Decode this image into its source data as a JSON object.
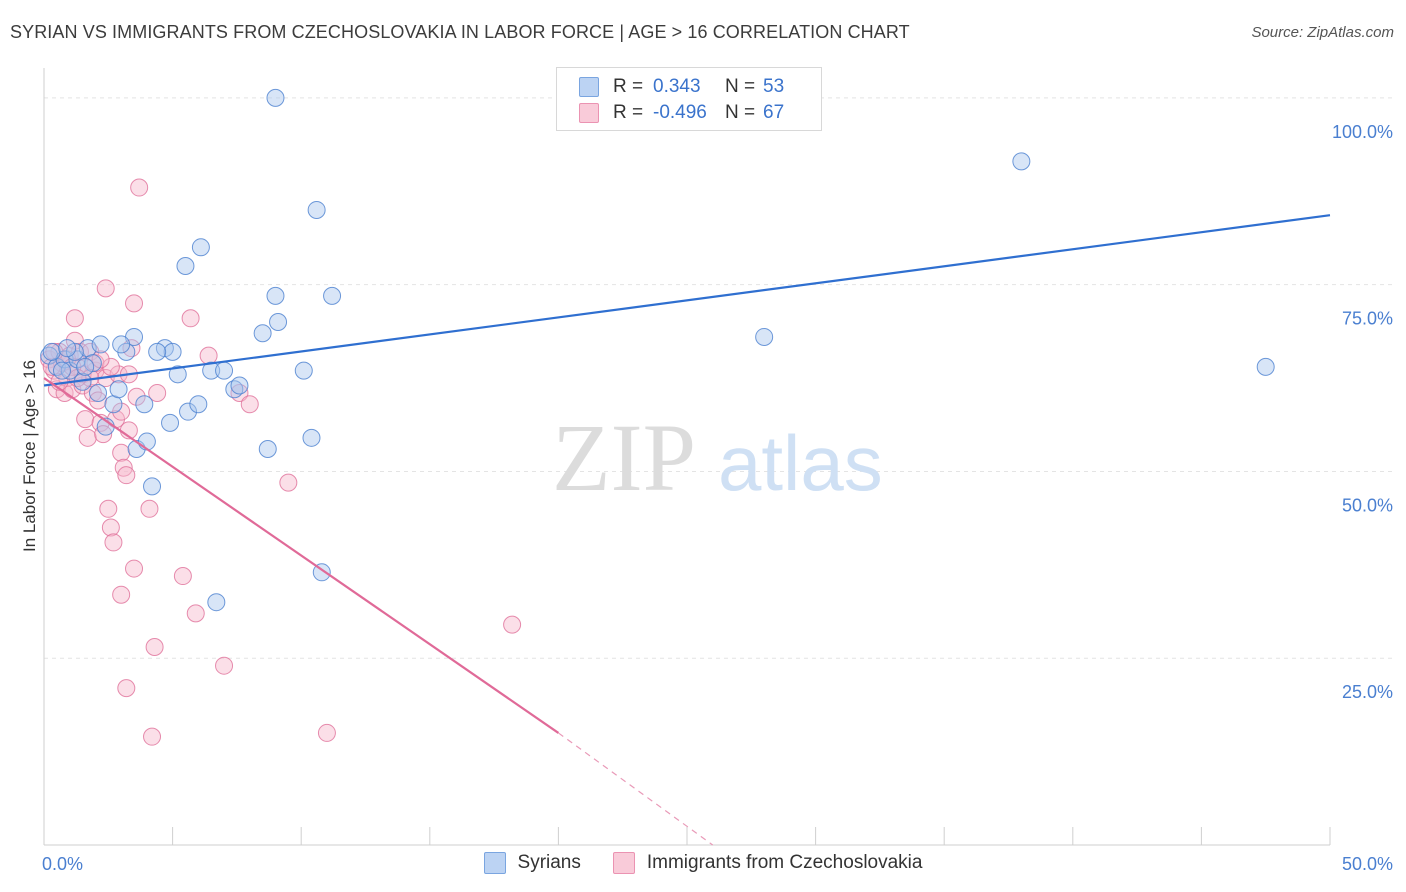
{
  "title": "SYRIAN VS IMMIGRANTS FROM CZECHOSLOVAKIA IN LABOR FORCE | AGE > 16 CORRELATION CHART",
  "source": "Source: ZipAtlas.com",
  "watermark": {
    "zip": "ZIP",
    "atlas": "atlas"
  },
  "colors": {
    "blue": "#4a7fd0",
    "blue_fill": "#a9c6ee",
    "blue_line": "#2f6fd0",
    "pink": "#e0709a",
    "pink_fill": "#f6b9cd",
    "pink_line": "#e06a98"
  },
  "legend": {
    "rows": [
      {
        "r_key": "R =",
        "r_val": "0.343",
        "n_key": "N =",
        "n_val": "53"
      },
      {
        "r_key": "R =",
        "r_val": "-0.496",
        "n_key": "N =",
        "n_val": "67"
      }
    ]
  },
  "chart_data": {
    "type": "scatter",
    "title": "SYRIAN VS IMMIGRANTS FROM CZECHOSLOVAKIA IN LABOR FORCE | AGE > 16 CORRELATION CHART",
    "xlabel": "",
    "ylabel": "In Labor Force | Age > 16",
    "xlim": [
      0,
      50
    ],
    "ylim": [
      0,
      104
    ],
    "x_tick_labels": [
      "0.0%",
      "50.0%"
    ],
    "y_ticks": [
      25,
      50,
      75,
      100
    ],
    "y_tick_labels": [
      "25.0%",
      "50.0%",
      "75.0%",
      "100.0%"
    ],
    "grid": true,
    "legend_position": "top-center",
    "series": [
      {
        "name": "Syrians",
        "color": "#4a7fd0",
        "trend": {
          "x0": 0,
          "y0": 61.5,
          "x1": 50,
          "y1": 84.3
        },
        "points": [
          [
            0.2,
            65.5
          ],
          [
            0.5,
            64.0
          ],
          [
            0.8,
            65.0
          ],
          [
            1.0,
            63.5
          ],
          [
            1.3,
            65.0
          ],
          [
            1.5,
            62.0
          ],
          [
            1.7,
            66.5
          ],
          [
            1.9,
            64.5
          ],
          [
            2.1,
            60.5
          ],
          [
            2.2,
            67.0
          ],
          [
            2.4,
            56.0
          ],
          [
            2.7,
            59.0
          ],
          [
            3.2,
            66.0
          ],
          [
            3.5,
            68.0
          ],
          [
            3.6,
            53.0
          ],
          [
            3.9,
            59.0
          ],
          [
            4.0,
            54.0
          ],
          [
            4.2,
            48.0
          ],
          [
            4.7,
            66.5
          ],
          [
            4.9,
            56.5
          ],
          [
            5.0,
            66.0
          ],
          [
            5.2,
            63.0
          ],
          [
            5.6,
            58.0
          ],
          [
            6.0,
            59.0
          ],
          [
            6.5,
            63.5
          ],
          [
            5.5,
            77.5
          ],
          [
            6.1,
            80.0
          ],
          [
            7.4,
            61.0
          ],
          [
            7.6,
            61.5
          ],
          [
            8.5,
            68.5
          ],
          [
            8.7,
            53.0
          ],
          [
            9.0,
            73.5
          ],
          [
            9.1,
            70.0
          ],
          [
            10.1,
            63.5
          ],
          [
            10.4,
            54.5
          ],
          [
            10.6,
            85.0
          ],
          [
            10.8,
            36.5
          ],
          [
            11.2,
            73.5
          ],
          [
            6.7,
            32.5
          ],
          [
            9.0,
            100.0
          ],
          [
            27.6,
            100.0
          ],
          [
            28.0,
            68.0
          ],
          [
            38.0,
            91.5
          ],
          [
            47.5,
            64.0
          ],
          [
            1.2,
            66.0
          ],
          [
            2.9,
            61.0
          ],
          [
            7.0,
            63.5
          ],
          [
            0.3,
            66.0
          ],
          [
            0.7,
            63.5
          ],
          [
            1.6,
            64.0
          ],
          [
            3.0,
            67.0
          ],
          [
            4.4,
            66.0
          ],
          [
            0.9,
            66.5
          ]
        ]
      },
      {
        "name": "Immigrants from Czechoslovakia",
        "color": "#e0709a",
        "trend": {
          "x0": 0,
          "y0": 62.5,
          "x1": 20,
          "y1": 15.0,
          "dash_to_x": 26,
          "dash_to_y": 0
        },
        "points": [
          [
            0.2,
            65.0
          ],
          [
            0.4,
            63.5
          ],
          [
            0.5,
            61.0
          ],
          [
            0.6,
            66.0
          ],
          [
            0.7,
            64.5
          ],
          [
            0.8,
            60.5
          ],
          [
            0.9,
            62.5
          ],
          [
            1.0,
            65.5
          ],
          [
            1.1,
            61.0
          ],
          [
            1.2,
            67.5
          ],
          [
            1.3,
            64.0
          ],
          [
            1.4,
            66.0
          ],
          [
            1.5,
            61.5
          ],
          [
            1.6,
            57.0
          ],
          [
            1.7,
            54.5
          ],
          [
            1.8,
            66.0
          ],
          [
            1.9,
            60.5
          ],
          [
            2.0,
            63.5
          ],
          [
            2.1,
            59.5
          ],
          [
            2.2,
            56.5
          ],
          [
            2.3,
            55.0
          ],
          [
            2.4,
            62.5
          ],
          [
            2.5,
            45.0
          ],
          [
            2.6,
            42.5
          ],
          [
            2.7,
            40.5
          ],
          [
            2.8,
            57.0
          ],
          [
            2.9,
            63.0
          ],
          [
            3.0,
            52.5
          ],
          [
            3.1,
            50.5
          ],
          [
            3.2,
            49.5
          ],
          [
            3.3,
            55.5
          ],
          [
            3.4,
            66.5
          ],
          [
            3.0,
            58.0
          ],
          [
            3.3,
            63.0
          ],
          [
            3.0,
            33.5
          ],
          [
            3.5,
            37.0
          ],
          [
            2.4,
            74.5
          ],
          [
            3.7,
            88.0
          ],
          [
            3.5,
            72.5
          ],
          [
            4.1,
            45.0
          ],
          [
            4.3,
            26.5
          ],
          [
            4.4,
            60.5
          ],
          [
            4.2,
            14.5
          ],
          [
            5.4,
            36.0
          ],
          [
            5.7,
            70.5
          ],
          [
            5.9,
            31.0
          ],
          [
            6.4,
            65.5
          ],
          [
            7.0,
            24.0
          ],
          [
            7.6,
            60.5
          ],
          [
            8.0,
            59.0
          ],
          [
            9.5,
            48.5
          ],
          [
            11.0,
            15.0
          ],
          [
            18.2,
            29.5
          ],
          [
            3.2,
            21.0
          ],
          [
            1.2,
            70.5
          ],
          [
            0.3,
            64.0
          ],
          [
            0.9,
            65.0
          ],
          [
            1.5,
            63.0
          ],
          [
            2.0,
            64.5
          ],
          [
            0.6,
            62.0
          ],
          [
            1.1,
            64.0
          ],
          [
            1.8,
            62.5
          ],
          [
            2.6,
            64.0
          ],
          [
            0.4,
            66.0
          ],
          [
            1.3,
            62.5
          ],
          [
            2.2,
            65.0
          ],
          [
            3.6,
            60.0
          ]
        ]
      }
    ]
  }
}
